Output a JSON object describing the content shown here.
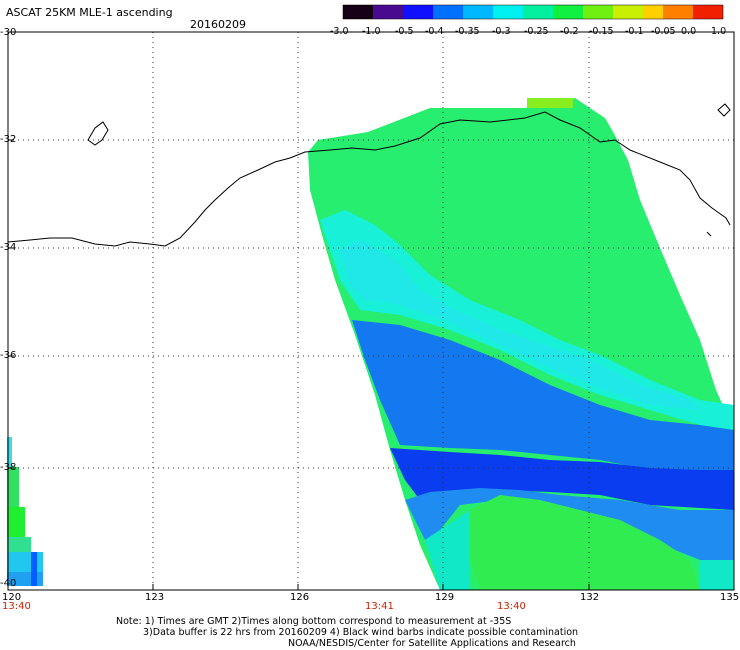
{
  "header": {
    "title": "ASCAT 25KM MLE-1 ascending",
    "date": "20160209"
  },
  "colorbar": {
    "ticks": [
      "-3.0",
      "-1.0",
      "-0.5",
      "-0.4",
      "-0.35",
      "-0.3",
      "-0.25",
      "-0.2",
      "-0.15",
      "-0.1",
      "-0.05",
      "0.0",
      "1.0"
    ],
    "colors": [
      "#1a001a",
      "#5a0a8c",
      "#2000ff",
      "#0050ff",
      "#00b0ff",
      "#00f5f0",
      "#00f090",
      "#10f020",
      "#80f010",
      "#f0f000",
      "#ffa000",
      "#ff4000",
      "#e00000"
    ]
  },
  "axes": {
    "lat_labels": [
      "-30",
      "-32",
      "-34",
      "-36",
      "-38",
      "-40"
    ],
    "lon_labels": [
      "120",
      "123",
      "126",
      "129",
      "132",
      "135"
    ]
  },
  "times": [
    "13:40",
    "13:41",
    "13:40"
  ],
  "notes": {
    "line1": "Note: 1) Times are GMT 2)Times along bottom correspond to measurement at -35S",
    "line2": "3)Data buffer is 22 hrs from 20160209 4) Black wind barbs indicate possible contamination",
    "line3": "NOAA/NESDIS/Center for Satellite Applications and Research"
  }
}
